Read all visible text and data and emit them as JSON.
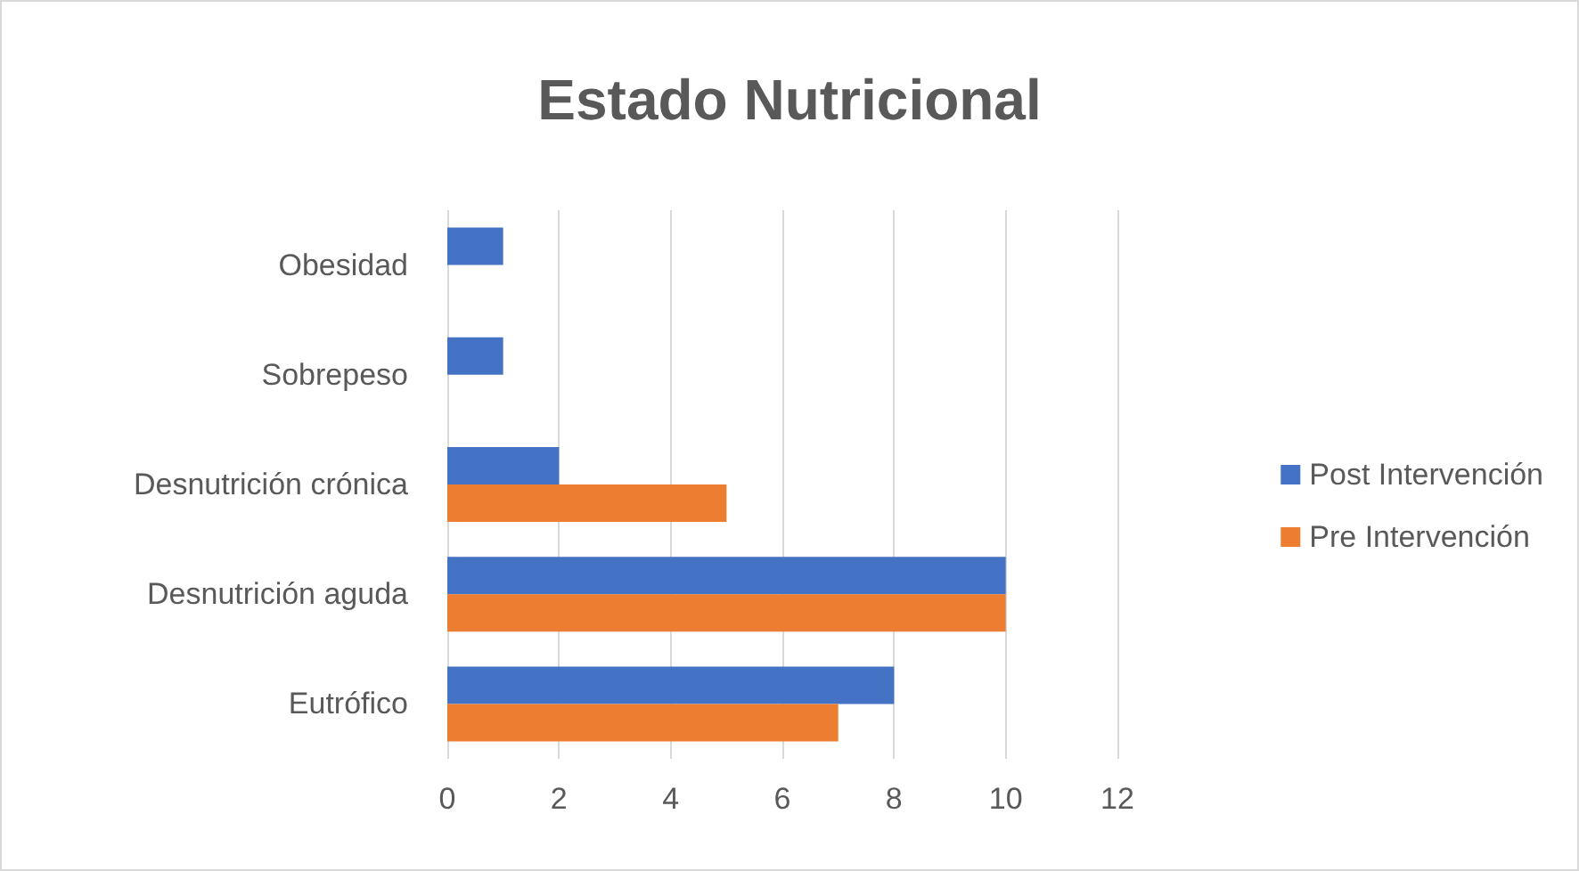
{
  "chart_data": {
    "type": "bar",
    "orientation": "horizontal",
    "title": "Estado Nutricional",
    "categories": [
      "Obesidad",
      "Sobrepeso",
      "Desnutrición crónica",
      "Desnutrición aguda",
      "Eutrófico"
    ],
    "series": [
      {
        "name": "Post Intervención",
        "color": "#4472c4",
        "values": [
          1,
          1,
          2,
          10,
          8
        ]
      },
      {
        "name": "Pre Intervención",
        "color": "#ed7d31",
        "values": [
          0,
          0,
          5,
          10,
          7
        ]
      }
    ],
    "xlim": [
      0,
      12
    ],
    "xticks": [
      0,
      2,
      4,
      6,
      8,
      10,
      12
    ],
    "grid": "x",
    "legend": "right"
  }
}
